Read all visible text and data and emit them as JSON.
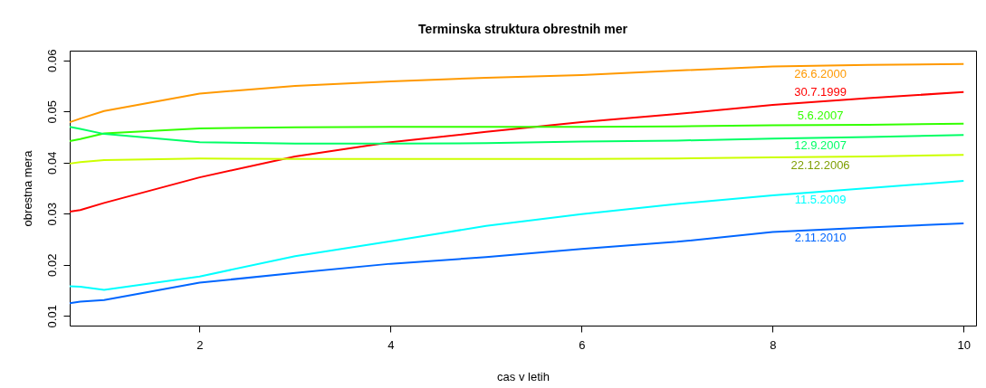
{
  "chart_data": {
    "type": "line",
    "title": "Terminska struktura obrestnih mer",
    "xlabel": "cas v letih",
    "ylabel": "obrestna mera",
    "x": [
      0.64,
      0.75,
      1,
      2,
      3,
      4,
      5,
      6,
      7,
      8,
      9,
      10
    ],
    "series": [
      {
        "name": "30.7.1999",
        "color": "#ff0000",
        "values": [
          0.0304,
          0.0307,
          0.0321,
          0.0371,
          0.0412,
          0.044,
          0.046,
          0.0479,
          0.0495,
          0.0513,
          0.0526,
          0.0538
        ]
      },
      {
        "name": "26.6.2000",
        "color": "#ff9900",
        "values": [
          0.0479,
          0.0486,
          0.0501,
          0.0535,
          0.055,
          0.0559,
          0.0566,
          0.0571,
          0.058,
          0.0588,
          0.0591,
          0.0593
        ]
      },
      {
        "name": "22.12.2006",
        "color": "#ccff00",
        "values": [
          0.0398,
          0.0401,
          0.0405,
          0.0408,
          0.0407,
          0.0407,
          0.0407,
          0.0407,
          0.0408,
          0.041,
          0.0412,
          0.0415
        ]
      },
      {
        "name": "5.6.2007",
        "color": "#33ff00",
        "values": [
          0.0442,
          0.0446,
          0.0457,
          0.0467,
          0.0469,
          0.047,
          0.047,
          0.047,
          0.0471,
          0.0473,
          0.0474,
          0.0476
        ]
      },
      {
        "name": "12.9.2007",
        "color": "#00ff66",
        "values": [
          0.047,
          0.0466,
          0.0456,
          0.044,
          0.0437,
          0.0437,
          0.0438,
          0.0441,
          0.0443,
          0.0447,
          0.045,
          0.0454
        ]
      },
      {
        "name": "11.5.2009",
        "color": "#00ffff",
        "values": [
          0.0158,
          0.0157,
          0.0151,
          0.0177,
          0.0217,
          0.0246,
          0.0276,
          0.0299,
          0.0319,
          0.0336,
          0.035,
          0.0364
        ]
      },
      {
        "name": "2.11.2010",
        "color": "#0066ff",
        "values": [
          0.0125,
          0.0128,
          0.0131,
          0.0165,
          0.0184,
          0.0202,
          0.0215,
          0.0231,
          0.0245,
          0.0264,
          0.0273,
          0.0281
        ]
      }
    ],
    "xlim": [
      0.64,
      10.13
    ],
    "ylim": [
      0.0081,
      0.0619
    ],
    "xticks": [
      2,
      4,
      6,
      8,
      10
    ],
    "yticks": [
      0.01,
      0.02,
      0.03,
      0.04,
      0.05,
      0.06
    ],
    "grid": false,
    "legend": false,
    "marker": "none",
    "line_style": "solid"
  }
}
